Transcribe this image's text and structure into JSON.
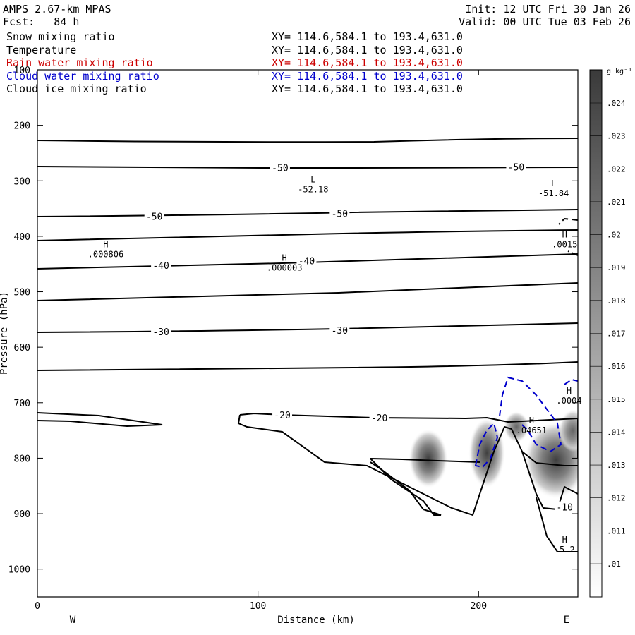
{
  "header": {
    "title": "AMPS 2.67-km MPAS",
    "forecast": "Fcst:   84 h",
    "init": "Init: 12 UTC Fri 30 Jan 26",
    "valid": "Valid: 00 UTC Tue 03 Feb 26"
  },
  "fields": [
    {
      "name": "Snow mixing ratio",
      "xy": "XY= 114.6,584.1 to 193.4,631.0",
      "color": "#000000"
    },
    {
      "name": "Temperature",
      "xy": "XY= 114.6,584.1 to 193.4,631.0",
      "color": "#000000"
    },
    {
      "name": "Rain water mixing ratio",
      "xy": "XY= 114.6,584.1 to 193.4,631.0",
      "color": "#cc0000"
    },
    {
      "name": "Cloud water mixing ratio",
      "xy": "XY= 114.6,584.1 to 193.4,631.0",
      "color": "#0000cc"
    },
    {
      "name": "Cloud ice mixing ratio",
      "xy": "XY= 114.6,584.1 to 193.4,631.0",
      "color": "#000000"
    }
  ],
  "chart_data": {
    "type": "contour-cross-section",
    "xlabel": "Distance (km)",
    "ylabel": "Pressure (hPa)",
    "xlim": [
      0,
      245
    ],
    "ylim": [
      1050,
      100
    ],
    "x_ticks": [
      0,
      100,
      200
    ],
    "y_ticks": [
      100,
      200,
      300,
      400,
      500,
      600,
      700,
      800,
      900,
      1000
    ],
    "left_end_label": "W",
    "right_end_label": "E",
    "colorbar": {
      "unit": "g kg⁻¹",
      "levels": [
        ".01",
        ".011",
        ".012",
        ".013",
        ".014",
        ".015",
        ".016",
        ".017",
        ".018",
        ".019",
        ".02",
        ".021",
        ".022",
        ".023",
        ".024"
      ]
    },
    "temperature_contour_labels": [
      {
        "text": "-50",
        "x": 110,
        "p": 276
      },
      {
        "text": "-50",
        "x": 217,
        "p": 275
      },
      {
        "text": "-50",
        "x": 53,
        "p": 364
      },
      {
        "text": "-50",
        "x": 137,
        "p": 359
      },
      {
        "text": "-40",
        "x": 56,
        "p": 452
      },
      {
        "text": "-40",
        "x": 122,
        "p": 444
      },
      {
        "text": "-30",
        "x": 56,
        "p": 572
      },
      {
        "text": "-30",
        "x": 137,
        "p": 569
      },
      {
        "text": "-20",
        "x": 111,
        "p": 722
      },
      {
        "text": "-20",
        "x": 155,
        "p": 727
      },
      {
        "text": "-10",
        "x": 239,
        "p": 888
      }
    ],
    "extrema": [
      {
        "letter": "L",
        "value": "-52.18",
        "x": 125,
        "p": 303
      },
      {
        "letter": "L",
        "value": "-51.84",
        "x": 234,
        "p": 310
      },
      {
        "letter": "H",
        "value": ".000806",
        "x": 31,
        "p": 420
      },
      {
        "letter": "H",
        "value": ".000003",
        "x": 112,
        "p": 444
      },
      {
        "letter": "H",
        "value": ".0015",
        "x": 239,
        "p": 402
      },
      {
        "letter": "H",
        "value": ".0004",
        "x": 241,
        "p": 684
      },
      {
        "letter": "H",
        "value": ".04651",
        "x": 224,
        "p": 737
      },
      {
        "letter": "H",
        "value": "-5.2",
        "x": 239,
        "p": 952
      }
    ]
  }
}
